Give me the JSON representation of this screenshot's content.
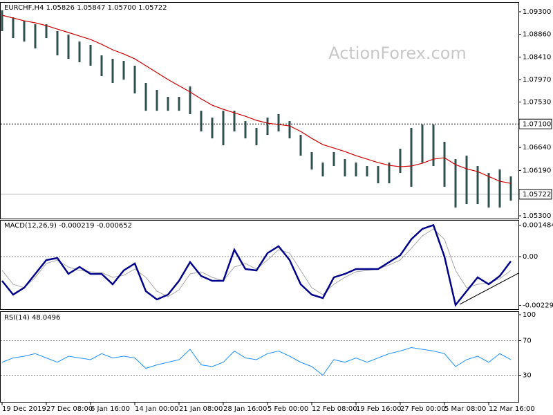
{
  "chart_data": [
    {
      "type": "range-bar",
      "title": "EURCHF,H4  1.05826 1.05847 1.05700 1.05722",
      "watermark": "ActionForex.com",
      "color": "#2f4f4f",
      "high": [
        1.09327,
        1.09191,
        1.09123,
        1.09055,
        1.09055,
        1.0892,
        1.08852,
        1.08716,
        1.08649,
        1.08445,
        1.08377,
        1.08337,
        1.08242,
        1.07903,
        1.07767,
        1.07632,
        1.07632,
        1.07835,
        1.0736,
        1.07225,
        1.0736,
        1.0736,
        1.07157,
        1.07021,
        1.07225,
        1.07293,
        1.07157,
        1.06886,
        1.06547,
        1.06343,
        1.06547,
        1.06411,
        1.06343,
        1.06276,
        1.06276,
        1.06343,
        1.06615,
        1.07021,
        1.07089,
        1.07089,
        1.0675,
        1.06411,
        1.06479,
        1.06276,
        1.0614,
        1.06208,
        1.06072
      ],
      "low": [
        1.0892,
        1.08784,
        1.08716,
        1.08581,
        1.08784,
        1.08445,
        1.08377,
        1.0831,
        1.08242,
        1.08038,
        1.07903,
        1.07971,
        1.07699,
        1.0736,
        1.0736,
        1.0736,
        1.0736,
        1.07293,
        1.06954,
        1.06818,
        1.06682,
        1.06954,
        1.06818,
        1.06682,
        1.06886,
        1.06954,
        1.06818,
        1.06479,
        1.06208,
        1.06072,
        1.06276,
        1.06072,
        1.06072,
        1.06072,
        1.05937,
        1.05937,
        1.0614,
        1.05869,
        1.06343,
        1.06276,
        1.05869,
        1.05462,
        1.0553,
        1.0553,
        1.05462,
        1.05462,
        1.05598
      ],
      "moving_average": {
        "color": "#cc0000",
        "values": [
          1.09232,
          1.09177,
          1.09123,
          1.09083,
          1.09028,
          1.0896,
          1.08893,
          1.08825,
          1.08757,
          1.08662,
          1.08554,
          1.08472,
          1.08377,
          1.08242,
          1.08106,
          1.07971,
          1.07849,
          1.07727,
          1.07591,
          1.07469,
          1.07388,
          1.0732,
          1.07252,
          1.07171,
          1.07116,
          1.07089,
          1.07062,
          1.06954,
          1.06818,
          1.06696,
          1.06628,
          1.0656,
          1.06479,
          1.06411,
          1.06343,
          1.06289,
          1.06262,
          1.06276,
          1.0633,
          1.06411,
          1.06438,
          1.06303,
          1.06221,
          1.06167,
          1.06072,
          1.05977,
          1.05937
        ]
      },
      "ylim": [
        1.05246,
        1.09476
      ],
      "yticks": [
        {
          "value": 1.093,
          "label": "1.09300"
        },
        {
          "value": 1.0886,
          "label": "1.08860"
        },
        {
          "value": 1.0841,
          "label": "1.08410"
        },
        {
          "value": 1.0797,
          "label": "1.07970"
        },
        {
          "value": 1.0753,
          "label": "1.07530"
        },
        {
          "value": 1.0664,
          "label": "1.06640"
        },
        {
          "value": 1.0619,
          "label": "1.06190"
        },
        {
          "value": 1.053,
          "label": "1.05300"
        }
      ],
      "hlines": [
        {
          "value": 1.071,
          "label": "1.07100"
        }
      ],
      "last_price": {
        "value": 1.05722,
        "label": "1.05722"
      }
    },
    {
      "type": "macd",
      "title": "MACD(12,26,9) -0.000219 -0.000652",
      "macd": {
        "color": "#00008b",
        "values": [
          -0.001141,
          -0.001793,
          -0.001467,
          -0.000815,
          -0.000163,
          -6.5e-05,
          -0.000815,
          -0.000489,
          -0.000815,
          -0.000815,
          -0.001304,
          -0.000652,
          -0.000326,
          -0.00163,
          -0.002021,
          -0.001793,
          -0.001141,
          -0.000261,
          -0.000913,
          -0.001141,
          -0.001141,
          0.000326,
          -0.000587,
          -0.000652,
          0.000163,
          0.000489,
          -0.000163,
          -0.001304,
          -0.001793,
          -0.001956,
          -0.000978,
          -0.000815,
          -0.000587,
          -0.000587,
          -0.000587,
          -0.000261,
          6.5e-05,
          0.000815,
          0.001304,
          0.001484,
          0,
          -0.002282,
          -0.00163,
          -0.000978,
          -0.001304,
          -0.000913,
          -0.000219
        ]
      },
      "signal": {
        "color": "#a9a9a9",
        "values": [
          -0.000652,
          -0.001304,
          -0.001467,
          -0.000978,
          -0.000326,
          -0.000163,
          -0.000489,
          -0.000652,
          -0.000717,
          -0.00075,
          -0.000978,
          -0.00088,
          -0.000587,
          -0.000978,
          -0.00163,
          -0.001891,
          -0.001565,
          -0.000815,
          -0.000717,
          -0.000978,
          -0.001141,
          -0.000489,
          -0.000326,
          -0.000587,
          -0.000163,
          0.000326,
          0.000163,
          -0.000652,
          -0.001467,
          -0.001793,
          -0.001304,
          -0.000978,
          -0.000717,
          -0.000652,
          -0.000587,
          -0.000391,
          -0.000163,
          0.000391,
          0.000978,
          0.001304,
          0.000815,
          -0.000652,
          -0.001467,
          -0.001304,
          -0.001239,
          -0.001043,
          -0.000652
        ]
      },
      "ylim": [
        -0.002478,
        0.001695
      ],
      "yticks": [
        0.001484,
        {
          "value": 0,
          "label": "0.00"
        },
        -0.002297
      ],
      "levels": [
        0
      ]
    },
    {
      "type": "line",
      "title": "RSI(14) 48.0496",
      "color": "#1e90ff",
      "values": [
        45,
        50,
        52,
        55,
        50,
        45,
        52,
        50,
        48,
        55,
        50,
        52,
        50,
        38,
        42,
        45,
        48,
        60,
        42,
        40,
        45,
        58,
        50,
        48,
        55,
        58,
        52,
        45,
        40,
        30,
        48,
        45,
        50,
        45,
        50,
        55,
        58,
        62,
        60,
        58,
        55,
        40,
        48,
        52,
        45,
        55,
        48.0496
      ],
      "ylim": [
        0,
        100
      ],
      "yticks": [
        100,
        70,
        30
      ],
      "levels": [
        70,
        30
      ],
      "categories": [
        "19 Dec 2019",
        null,
        null,
        null,
        "27 Dec 08:00",
        null,
        null,
        null,
        "6 Jan 16:00",
        null,
        null,
        null,
        "14 Jan 00:00",
        null,
        null,
        null,
        "21 Jan 08:00",
        null,
        null,
        null,
        "28 Jan 16:00",
        null,
        null,
        null,
        "5 Feb 00:00",
        null,
        null,
        null,
        "12 Feb 08:00",
        null,
        null,
        null,
        "19 Feb 16:00",
        null,
        null,
        null,
        "27 Feb 00:00",
        null,
        null,
        null,
        "5 Mar 08:00",
        null,
        null,
        null,
        "12 Mar 16:00",
        null,
        null
      ]
    }
  ]
}
